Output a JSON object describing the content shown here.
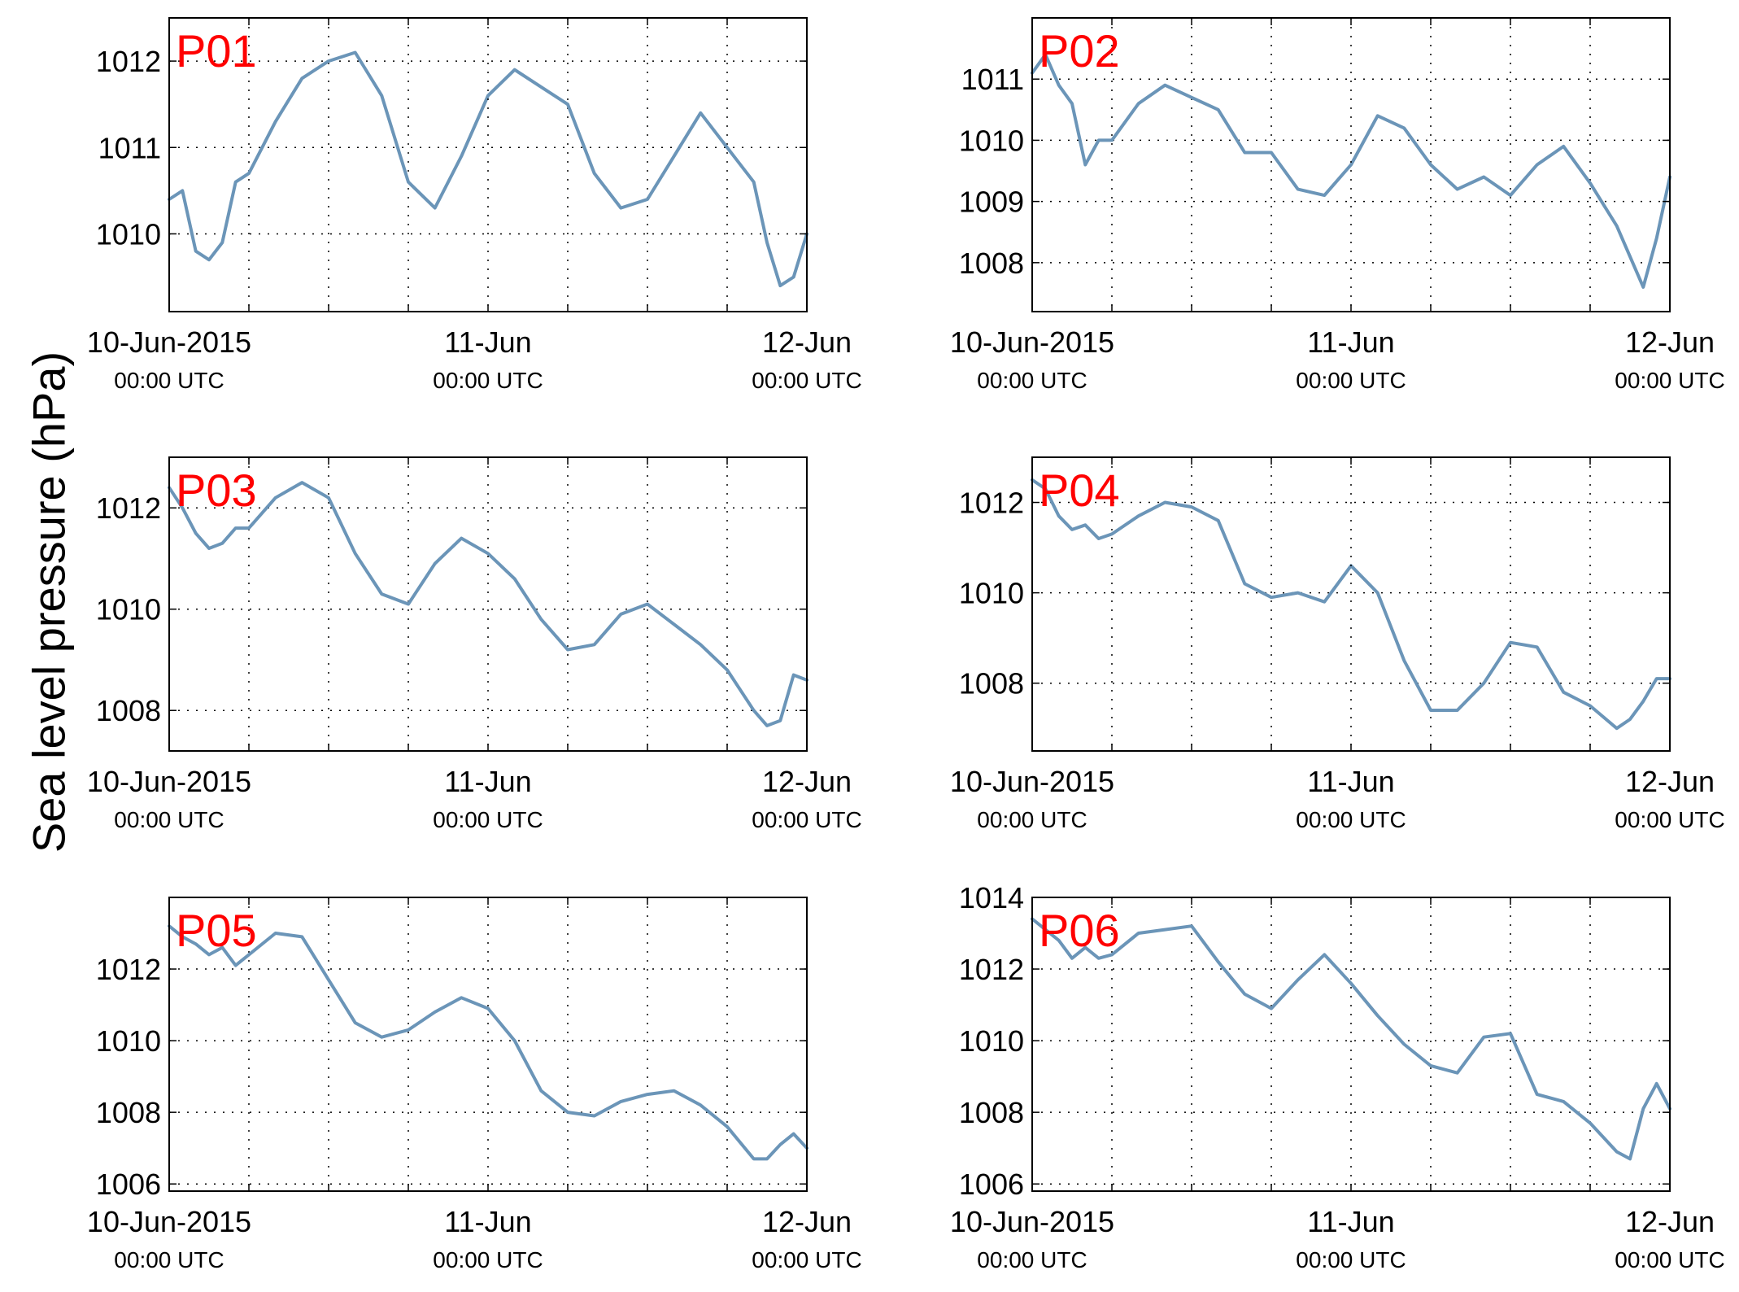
{
  "figure": {
    "ylabel": "Sea level pressure (hPa)",
    "line_color": "#6b95b8",
    "panel_label_color": "#ff0000",
    "grid": true,
    "x_ticks": [
      {
        "top": "10-Jun-2015",
        "bottom": "00:00 UTC"
      },
      {
        "top": "11-Jun",
        "bottom": "00:00 UTC"
      },
      {
        "top": "12-Jun",
        "bottom": "00:00 UTC"
      }
    ]
  },
  "chart_data": [
    {
      "type": "line",
      "panel_label": "P01",
      "xlim": [
        "2015-06-10T00:00Z",
        "2015-06-12T00:00Z"
      ],
      "xticks": [
        "2015-06-10T00:00Z",
        "2015-06-11T00:00Z",
        "2015-06-12T00:00Z"
      ],
      "x_gridlines": [
        "2015-06-10T06:00Z",
        "2015-06-10T12:00Z",
        "2015-06-10T18:00Z",
        "2015-06-11T06:00Z",
        "2015-06-11T12:00Z",
        "2015-06-11T18:00Z"
      ],
      "ylim": [
        1009.1,
        1012.5
      ],
      "yticks": [
        1010,
        1011,
        1012
      ],
      "x": [
        "2015-06-10T00:00Z",
        "2015-06-10T01:00Z",
        "2015-06-10T02:00Z",
        "2015-06-10T03:00Z",
        "2015-06-10T04:00Z",
        "2015-06-10T05:00Z",
        "2015-06-10T06:00Z",
        "2015-06-10T08:00Z",
        "2015-06-10T10:00Z",
        "2015-06-10T12:00Z",
        "2015-06-10T14:00Z",
        "2015-06-10T16:00Z",
        "2015-06-10T18:00Z",
        "2015-06-10T20:00Z",
        "2015-06-10T22:00Z",
        "2015-06-11T00:00Z",
        "2015-06-11T02:00Z",
        "2015-06-11T04:00Z",
        "2015-06-11T06:00Z",
        "2015-06-11T08:00Z",
        "2015-06-11T10:00Z",
        "2015-06-11T12:00Z",
        "2015-06-11T14:00Z",
        "2015-06-11T16:00Z",
        "2015-06-11T18:00Z",
        "2015-06-11T20:00Z",
        "2015-06-11T21:00Z",
        "2015-06-11T22:00Z",
        "2015-06-11T23:00Z",
        "2015-06-12T00:00Z"
      ],
      "y": [
        1010.4,
        1010.5,
        1009.8,
        1009.7,
        1009.9,
        1010.6,
        1010.7,
        1011.3,
        1011.8,
        1012.0,
        1012.1,
        1011.6,
        1010.6,
        1010.3,
        1010.9,
        1011.6,
        1011.9,
        1011.7,
        1011.5,
        1010.7,
        1010.3,
        1010.4,
        1010.9,
        1011.4,
        1011.0,
        1010.6,
        1009.9,
        1009.4,
        1009.5,
        1010.0
      ]
    },
    {
      "type": "line",
      "panel_label": "P02",
      "xlim": [
        "2015-06-10T00:00Z",
        "2015-06-12T00:00Z"
      ],
      "xticks": [
        "2015-06-10T00:00Z",
        "2015-06-11T00:00Z",
        "2015-06-12T00:00Z"
      ],
      "x_gridlines": [
        "2015-06-10T06:00Z",
        "2015-06-10T12:00Z",
        "2015-06-10T18:00Z",
        "2015-06-11T06:00Z",
        "2015-06-11T12:00Z",
        "2015-06-11T18:00Z"
      ],
      "ylim": [
        1007.2,
        1012.0
      ],
      "yticks": [
        1008,
        1009,
        1010,
        1011
      ],
      "x": [
        "2015-06-10T00:00Z",
        "2015-06-10T01:00Z",
        "2015-06-10T02:00Z",
        "2015-06-10T03:00Z",
        "2015-06-10T04:00Z",
        "2015-06-10T05:00Z",
        "2015-06-10T06:00Z",
        "2015-06-10T08:00Z",
        "2015-06-10T10:00Z",
        "2015-06-10T12:00Z",
        "2015-06-10T14:00Z",
        "2015-06-10T16:00Z",
        "2015-06-10T18:00Z",
        "2015-06-10T20:00Z",
        "2015-06-10T22:00Z",
        "2015-06-11T00:00Z",
        "2015-06-11T02:00Z",
        "2015-06-11T04:00Z",
        "2015-06-11T06:00Z",
        "2015-06-11T08:00Z",
        "2015-06-11T10:00Z",
        "2015-06-11T12:00Z",
        "2015-06-11T14:00Z",
        "2015-06-11T16:00Z",
        "2015-06-11T18:00Z",
        "2015-06-11T20:00Z",
        "2015-06-11T21:00Z",
        "2015-06-11T22:00Z",
        "2015-06-11T23:00Z",
        "2015-06-12T00:00Z"
      ],
      "y": [
        1011.1,
        1011.4,
        1010.9,
        1010.6,
        1009.6,
        1010.0,
        1010.0,
        1010.6,
        1010.9,
        1010.7,
        1010.5,
        1009.8,
        1009.8,
        1009.2,
        1009.1,
        1009.6,
        1010.4,
        1010.2,
        1009.6,
        1009.2,
        1009.4,
        1009.1,
        1009.6,
        1009.9,
        1009.3,
        1008.6,
        1008.1,
        1007.6,
        1008.4,
        1009.4
      ]
    },
    {
      "type": "line",
      "panel_label": "P03",
      "xlim": [
        "2015-06-10T00:00Z",
        "2015-06-12T00:00Z"
      ],
      "xticks": [
        "2015-06-10T00:00Z",
        "2015-06-11T00:00Z",
        "2015-06-12T00:00Z"
      ],
      "x_gridlines": [
        "2015-06-10T06:00Z",
        "2015-06-10T12:00Z",
        "2015-06-10T18:00Z",
        "2015-06-11T06:00Z",
        "2015-06-11T12:00Z",
        "2015-06-11T18:00Z"
      ],
      "ylim": [
        1007.2,
        1013.0
      ],
      "yticks": [
        1008,
        1010,
        1012
      ],
      "x": [
        "2015-06-10T00:00Z",
        "2015-06-10T01:00Z",
        "2015-06-10T02:00Z",
        "2015-06-10T03:00Z",
        "2015-06-10T04:00Z",
        "2015-06-10T05:00Z",
        "2015-06-10T06:00Z",
        "2015-06-10T08:00Z",
        "2015-06-10T10:00Z",
        "2015-06-10T12:00Z",
        "2015-06-10T14:00Z",
        "2015-06-10T16:00Z",
        "2015-06-10T18:00Z",
        "2015-06-10T20:00Z",
        "2015-06-10T22:00Z",
        "2015-06-11T00:00Z",
        "2015-06-11T02:00Z",
        "2015-06-11T04:00Z",
        "2015-06-11T06:00Z",
        "2015-06-11T08:00Z",
        "2015-06-11T10:00Z",
        "2015-06-11T12:00Z",
        "2015-06-11T14:00Z",
        "2015-06-11T16:00Z",
        "2015-06-11T18:00Z",
        "2015-06-11T20:00Z",
        "2015-06-11T21:00Z",
        "2015-06-11T22:00Z",
        "2015-06-11T23:00Z",
        "2015-06-12T00:00Z"
      ],
      "y": [
        1012.4,
        1012.0,
        1011.5,
        1011.2,
        1011.3,
        1011.6,
        1011.6,
        1012.2,
        1012.5,
        1012.2,
        1011.1,
        1010.3,
        1010.1,
        1010.9,
        1011.4,
        1011.1,
        1010.6,
        1009.8,
        1009.2,
        1009.3,
        1009.9,
        1010.1,
        1009.7,
        1009.3,
        1008.8,
        1008.0,
        1007.7,
        1007.8,
        1008.7,
        1008.6
      ]
    },
    {
      "type": "line",
      "panel_label": "P04",
      "xlim": [
        "2015-06-10T00:00Z",
        "2015-06-12T00:00Z"
      ],
      "xticks": [
        "2015-06-10T00:00Z",
        "2015-06-11T00:00Z",
        "2015-06-12T00:00Z"
      ],
      "x_gridlines": [
        "2015-06-10T06:00Z",
        "2015-06-10T12:00Z",
        "2015-06-10T18:00Z",
        "2015-06-11T06:00Z",
        "2015-06-11T12:00Z",
        "2015-06-11T18:00Z"
      ],
      "ylim": [
        1006.5,
        1013.0
      ],
      "yticks": [
        1008,
        1010,
        1012
      ],
      "x": [
        "2015-06-10T00:00Z",
        "2015-06-10T01:00Z",
        "2015-06-10T02:00Z",
        "2015-06-10T03:00Z",
        "2015-06-10T04:00Z",
        "2015-06-10T05:00Z",
        "2015-06-10T06:00Z",
        "2015-06-10T08:00Z",
        "2015-06-10T10:00Z",
        "2015-06-10T12:00Z",
        "2015-06-10T14:00Z",
        "2015-06-10T16:00Z",
        "2015-06-10T18:00Z",
        "2015-06-10T20:00Z",
        "2015-06-10T22:00Z",
        "2015-06-11T00:00Z",
        "2015-06-11T02:00Z",
        "2015-06-11T04:00Z",
        "2015-06-11T06:00Z",
        "2015-06-11T08:00Z",
        "2015-06-11T10:00Z",
        "2015-06-11T12:00Z",
        "2015-06-11T14:00Z",
        "2015-06-11T16:00Z",
        "2015-06-11T18:00Z",
        "2015-06-11T20:00Z",
        "2015-06-11T21:00Z",
        "2015-06-11T22:00Z",
        "2015-06-11T23:00Z",
        "2015-06-12T00:00Z"
      ],
      "y": [
        1012.5,
        1012.3,
        1011.7,
        1011.4,
        1011.5,
        1011.2,
        1011.3,
        1011.7,
        1012.0,
        1011.9,
        1011.6,
        1010.2,
        1009.9,
        1010.0,
        1009.8,
        1010.6,
        1010.0,
        1008.5,
        1007.4,
        1007.4,
        1008.0,
        1008.9,
        1008.8,
        1007.8,
        1007.5,
        1007.0,
        1007.2,
        1007.6,
        1008.1,
        1008.1
      ]
    },
    {
      "type": "line",
      "panel_label": "P05",
      "xlim": [
        "2015-06-10T00:00Z",
        "2015-06-12T00:00Z"
      ],
      "xticks": [
        "2015-06-10T00:00Z",
        "2015-06-11T00:00Z",
        "2015-06-12T00:00Z"
      ],
      "x_gridlines": [
        "2015-06-10T06:00Z",
        "2015-06-10T12:00Z",
        "2015-06-10T18:00Z",
        "2015-06-11T06:00Z",
        "2015-06-11T12:00Z",
        "2015-06-11T18:00Z"
      ],
      "ylim": [
        1005.8,
        1014.0
      ],
      "yticks": [
        1006,
        1008,
        1010,
        1012
      ],
      "x": [
        "2015-06-10T00:00Z",
        "2015-06-10T01:00Z",
        "2015-06-10T02:00Z",
        "2015-06-10T03:00Z",
        "2015-06-10T04:00Z",
        "2015-06-10T05:00Z",
        "2015-06-10T06:00Z",
        "2015-06-10T08:00Z",
        "2015-06-10T10:00Z",
        "2015-06-10T12:00Z",
        "2015-06-10T14:00Z",
        "2015-06-10T16:00Z",
        "2015-06-10T18:00Z",
        "2015-06-10T20:00Z",
        "2015-06-10T22:00Z",
        "2015-06-11T00:00Z",
        "2015-06-11T02:00Z",
        "2015-06-11T04:00Z",
        "2015-06-11T06:00Z",
        "2015-06-11T08:00Z",
        "2015-06-11T10:00Z",
        "2015-06-11T12:00Z",
        "2015-06-11T14:00Z",
        "2015-06-11T16:00Z",
        "2015-06-11T18:00Z",
        "2015-06-11T20:00Z",
        "2015-06-11T21:00Z",
        "2015-06-11T22:00Z",
        "2015-06-11T23:00Z",
        "2015-06-12T00:00Z"
      ],
      "y": [
        1013.2,
        1012.9,
        1012.7,
        1012.4,
        1012.6,
        1012.1,
        1012.4,
        1013.0,
        1012.9,
        1011.7,
        1010.5,
        1010.1,
        1010.3,
        1010.8,
        1011.2,
        1010.9,
        1010.0,
        1008.6,
        1008.0,
        1007.9,
        1008.3,
        1008.5,
        1008.6,
        1008.2,
        1007.6,
        1006.7,
        1006.7,
        1007.1,
        1007.4,
        1007.0
      ]
    },
    {
      "type": "line",
      "panel_label": "P06",
      "xlim": [
        "2015-06-10T00:00Z",
        "2015-06-12T00:00Z"
      ],
      "xticks": [
        "2015-06-10T00:00Z",
        "2015-06-11T00:00Z",
        "2015-06-12T00:00Z"
      ],
      "x_gridlines": [
        "2015-06-10T06:00Z",
        "2015-06-10T12:00Z",
        "2015-06-10T18:00Z",
        "2015-06-11T06:00Z",
        "2015-06-11T12:00Z",
        "2015-06-11T18:00Z"
      ],
      "ylim": [
        1005.8,
        1014.0
      ],
      "yticks": [
        1006,
        1008,
        1010,
        1012,
        1014
      ],
      "x": [
        "2015-06-10T00:00Z",
        "2015-06-10T01:00Z",
        "2015-06-10T02:00Z",
        "2015-06-10T03:00Z",
        "2015-06-10T04:00Z",
        "2015-06-10T05:00Z",
        "2015-06-10T06:00Z",
        "2015-06-10T08:00Z",
        "2015-06-10T10:00Z",
        "2015-06-10T12:00Z",
        "2015-06-10T14:00Z",
        "2015-06-10T16:00Z",
        "2015-06-10T18:00Z",
        "2015-06-10T20:00Z",
        "2015-06-10T22:00Z",
        "2015-06-11T00:00Z",
        "2015-06-11T02:00Z",
        "2015-06-11T04:00Z",
        "2015-06-11T06:00Z",
        "2015-06-11T08:00Z",
        "2015-06-11T10:00Z",
        "2015-06-11T12:00Z",
        "2015-06-11T14:00Z",
        "2015-06-11T16:00Z",
        "2015-06-11T18:00Z",
        "2015-06-11T20:00Z",
        "2015-06-11T21:00Z",
        "2015-06-11T22:00Z",
        "2015-06-11T23:00Z",
        "2015-06-12T00:00Z"
      ],
      "y": [
        1013.4,
        1013.1,
        1012.8,
        1012.3,
        1012.6,
        1012.3,
        1012.4,
        1013.0,
        1013.1,
        1013.2,
        1012.2,
        1011.3,
        1010.9,
        1011.7,
        1012.4,
        1011.6,
        1010.7,
        1009.9,
        1009.3,
        1009.1,
        1010.1,
        1010.2,
        1008.5,
        1008.3,
        1007.7,
        1006.9,
        1006.7,
        1008.1,
        1008.8,
        1008.1
      ]
    }
  ]
}
